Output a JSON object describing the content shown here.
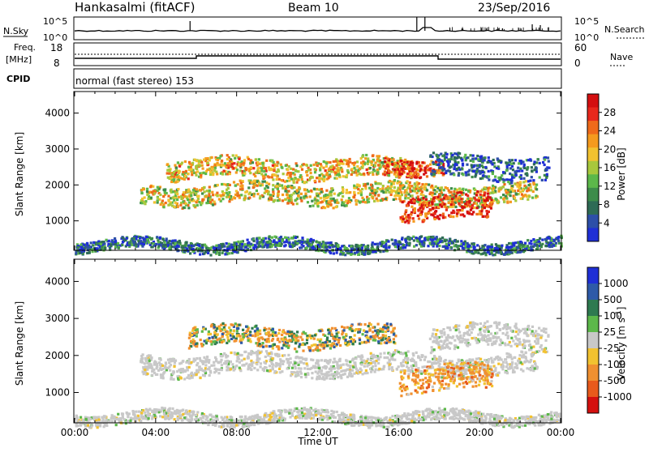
{
  "header": {
    "station": "Hankasalmi (fitACF)",
    "beam": "Beam 10",
    "date": "23/Sep/2016"
  },
  "summary_panels": {
    "nsky_label": "N.Sky",
    "nsky_ticks": [
      "10^5",
      "10^0"
    ],
    "nsearch_label": "N.Search",
    "nsearch_ticks": [
      "10^5",
      "10^0"
    ],
    "freq_label_1": "Freq.",
    "freq_label_2": "[MHz]",
    "freq_ticks": [
      "18",
      "8"
    ],
    "nave_label": "Nave",
    "nave_ticks": [
      "60",
      "0"
    ],
    "cpid_label": "CPID",
    "cpid_text": "normal (fast stereo) 153"
  },
  "chart_data": [
    {
      "type": "heatmap",
      "title": "",
      "ylabel": "Slant Range [km]",
      "ylim": [
        180,
        4600
      ],
      "yticks": [
        "1000",
        "2000",
        "3000",
        "4000"
      ],
      "xlim": [
        0,
        24
      ],
      "colorbar": {
        "label": "Power [dB]",
        "ticks": [
          "4",
          "8",
          "12",
          "16",
          "20",
          "24",
          "28"
        ],
        "range": [
          0,
          32
        ],
        "colors": [
          "#1f2fd6",
          "#2d4fa8",
          "#2e6b55",
          "#3d8c4a",
          "#5cb84a",
          "#a8c83c",
          "#f2c230",
          "#f59a1e",
          "#ef6a1a",
          "#e8281c",
          "#d40f10"
        ]
      },
      "echo_bands": [
        {
          "t_start": 3.2,
          "t_end": 22.8,
          "range_lo": 1500,
          "range_hi": 2050,
          "level": 0.55
        },
        {
          "t_start": 4.5,
          "t_end": 16.6,
          "range_lo": 2200,
          "range_hi": 2750,
          "level": 0.6
        },
        {
          "t_start": 15.2,
          "t_end": 18.2,
          "range_lo": 2350,
          "range_hi": 2800,
          "level": 0.85
        },
        {
          "t_start": 16.0,
          "t_end": 20.6,
          "range_lo": 1050,
          "range_hi": 1750,
          "level": 0.9
        },
        {
          "t_start": 17.5,
          "t_end": 23.4,
          "range_lo": 2200,
          "range_hi": 2850,
          "level": 0.15
        },
        {
          "t_start": 0.0,
          "t_end": 24.0,
          "range_lo": 200,
          "range_hi": 500,
          "level": 0.2
        }
      ]
    },
    {
      "type": "heatmap",
      "title": "",
      "ylabel": "Velocity [m s",
      "ylabel_left": "Slant Range [km]",
      "ylim": [
        180,
        4600
      ],
      "yticks": [
        "1000",
        "2000",
        "3000",
        "4000"
      ],
      "xlim": [
        0,
        24
      ],
      "xticks": [
        "00:00",
        "04:00",
        "08:00",
        "12:00",
        "16:00",
        "20:00",
        "00:00"
      ],
      "xlabel": "Time UT",
      "colorbar": {
        "label": "Velocity [m s",
        "label_sup": "-1",
        "label_end": "]",
        "ticks": [
          "1000",
          "500",
          "100",
          "25",
          "-25",
          "-100",
          "-500",
          "-1000"
        ],
        "colors": [
          "#1f2fd6",
          "#2e5aa8",
          "#2e7a50",
          "#5cb84a",
          "#c8c8c8",
          "#f2c230",
          "#f09030",
          "#e85a1c",
          "#d4100f"
        ]
      },
      "echo_bands": [
        {
          "t_start": 3.2,
          "t_end": 22.8,
          "range_lo": 1500,
          "range_hi": 2050,
          "kind": "ground"
        },
        {
          "t_start": 5.5,
          "t_end": 15.8,
          "range_lo": 2250,
          "range_hi": 2800,
          "kind": "mixed"
        },
        {
          "t_start": 17.5,
          "t_end": 23.4,
          "range_lo": 2200,
          "range_hi": 2850,
          "kind": "ground"
        },
        {
          "t_start": 16.0,
          "t_end": 20.6,
          "range_lo": 1050,
          "range_hi": 1750,
          "kind": "negative"
        },
        {
          "t_start": 0.0,
          "t_end": 24.0,
          "range_lo": 200,
          "range_hi": 500,
          "kind": "ground"
        }
      ]
    }
  ]
}
